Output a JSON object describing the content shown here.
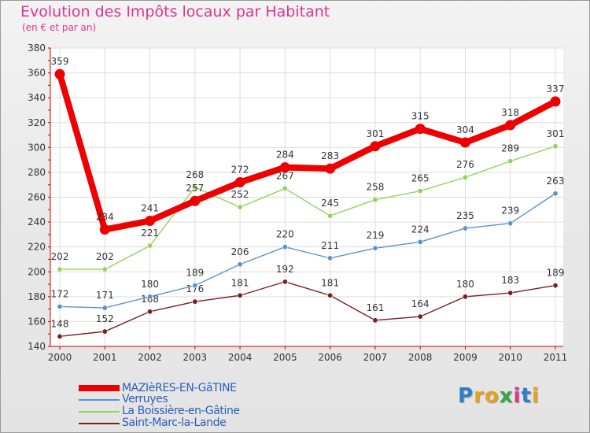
{
  "chart_data": {
    "type": "line",
    "title": "Evolution des Impôts locaux par Habitant",
    "subtitle": "(en € et par an)",
    "xlabel": "",
    "ylabel": "",
    "categories": [
      "2000",
      "2001",
      "2002",
      "2003",
      "2004",
      "2005",
      "2006",
      "2007",
      "2008",
      "2009",
      "2010",
      "2011"
    ],
    "yticks": [
      "140",
      "160",
      "180",
      "200",
      "220",
      "240",
      "260",
      "280",
      "300",
      "320",
      "340",
      "360",
      "380"
    ],
    "ylim": [
      140,
      380
    ],
    "grid": true,
    "legend_position": "bottom-left",
    "series": [
      {
        "name": "Saint-Marc-la-Lande",
        "color": "#7a1f1f",
        "values": [
          148,
          152,
          168,
          176,
          181,
          192,
          181,
          161,
          164,
          180,
          183,
          189
        ],
        "labels": [
          "148",
          "152",
          "168",
          "176",
          "181",
          "192",
          "181",
          "161",
          "164",
          "180",
          "183",
          "189"
        ]
      },
      {
        "name": "Verruyes",
        "color": "#5b93c8",
        "values": [
          172,
          171,
          180,
          189,
          206,
          220,
          211,
          219,
          224,
          235,
          239,
          263
        ],
        "labels": [
          "172",
          "171",
          "180",
          "189",
          "206",
          "220",
          "211",
          "219",
          "224",
          "235",
          "239",
          "263"
        ]
      },
      {
        "name": "La Boissière-en-Gâtine",
        "color": "#93d35a",
        "values": [
          202,
          202,
          221,
          268,
          252,
          267,
          245,
          258,
          265,
          276,
          289,
          301
        ],
        "labels": [
          "202",
          "202",
          "221",
          "268",
          "252",
          "267",
          "245",
          "258",
          "265",
          "276",
          "289",
          "301"
        ]
      },
      {
        "name": "MAZIèRES-EN-GâTINE",
        "color": "#ee0000",
        "values": [
          359,
          234,
          241,
          257,
          272,
          284,
          283,
          301,
          315,
          304,
          318,
          337
        ],
        "labels": [
          "359",
          "234",
          "241",
          "257",
          "272",
          "284",
          "283",
          "301",
          "315",
          "304",
          "318",
          "337"
        ]
      }
    ]
  },
  "legend": {
    "items": [
      {
        "label": "MAZIèRES-EN-GâTINE",
        "color": "#ee0000"
      },
      {
        "label": "Verruyes",
        "color": "#5b93c8"
      },
      {
        "label": "La Boissière-en-Gâtine",
        "color": "#93d35a"
      },
      {
        "label": "Saint-Marc-la-Lande",
        "color": "#7a1f1f"
      }
    ]
  },
  "logo": {
    "letters": [
      "P",
      "r",
      "o",
      "x",
      "i",
      "t",
      "i"
    ],
    "colors": [
      "#2e7fc7",
      "#e9a21a",
      "#e9a21a",
      "#35a64c",
      "#e1338e",
      "#2e7fc7",
      "#e9a21a"
    ]
  }
}
